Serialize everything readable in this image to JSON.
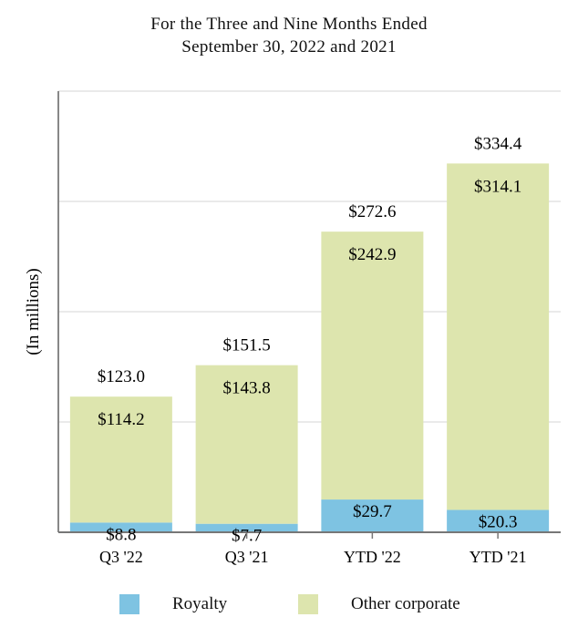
{
  "chart_data": {
    "type": "bar",
    "stacked": true,
    "title_lines": [
      "For the Three and Nine Months Ended",
      "September 30, 2022 and 2021"
    ],
    "ylabel": "(In millions)",
    "xlabel": "",
    "categories": [
      "Q3 '22",
      "Q3 '21",
      "YTD '22",
      "YTD '21"
    ],
    "series": [
      {
        "name": "Royalty",
        "color": "#7ec3e2",
        "values": [
          8.8,
          7.7,
          29.7,
          20.3
        ],
        "labels": [
          "$8.8",
          "$7.7",
          "$29.7",
          "$20.3"
        ]
      },
      {
        "name": "Other corporate",
        "color": "#dde5ae",
        "values": [
          114.2,
          143.8,
          242.9,
          314.1
        ],
        "labels": [
          "$114.2",
          "$143.8",
          "$242.9",
          "$314.1"
        ]
      }
    ],
    "totals": [
      123.0,
      151.5,
      272.6,
      334.4
    ],
    "total_labels": [
      "$123.0",
      "$151.5",
      "$272.6",
      "$334.4"
    ],
    "ylim": [
      0,
      400
    ],
    "grid": true,
    "legend_position": "bottom"
  }
}
